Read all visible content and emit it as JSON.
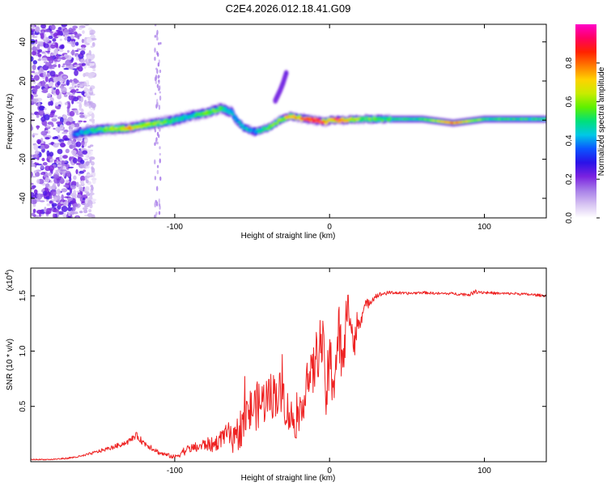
{
  "page_title": "C2E4.2026.012.18.41.G09",
  "chart_data": [
    {
      "type": "heatmap",
      "title": "C2E4.2026.012.18.41.G09",
      "xlabel": "Height of straight line (km)",
      "ylabel": "Frequency (Hz)",
      "xlim": [
        -193,
        140
      ],
      "ylim": [
        -50,
        49
      ],
      "xticks": [
        -100,
        0,
        100
      ],
      "yticks": [
        -40,
        -20,
        0,
        20,
        40
      ],
      "colorbar": {
        "label": "Normalized spectral amplitude",
        "range": [
          0.0,
          1.0
        ],
        "ticks": [
          0.0,
          0.2,
          0.4,
          0.6,
          0.8
        ],
        "colors": [
          "#ffffff",
          "#d6c2f2",
          "#a77de8",
          "#7a22e0",
          "#2a12e8",
          "#0a55ff",
          "#00c8e6",
          "#00e07a",
          "#5ef000",
          "#c8ec00",
          "#ffd200",
          "#ff7a00",
          "#ff2200",
          "#ff0060",
          "#ff00c8"
        ]
      },
      "ridge": {
        "x": [
          -165,
          -150,
          -130,
          -115,
          -100,
          -90,
          -78,
          -70,
          -63,
          -60,
          -55,
          -48,
          -40,
          -32,
          -25,
          -18,
          -10,
          -3,
          0,
          5,
          10,
          20,
          40,
          60,
          80,
          100,
          120,
          140
        ],
        "freq": [
          -7,
          -5,
          -4,
          -2,
          0,
          2,
          4,
          6,
          4,
          0,
          -4,
          -6,
          -4,
          0,
          2,
          1,
          0,
          -1,
          0,
          0,
          0,
          0.5,
          0.5,
          0.5,
          -1.5,
          0.5,
          0.5,
          0.5
        ],
        "amplitude": [
          0.35,
          0.5,
          0.7,
          0.6,
          0.5,
          0.45,
          0.55,
          0.5,
          0.45,
          0.4,
          0.45,
          0.4,
          0.5,
          0.6,
          0.7,
          0.8,
          0.9,
          0.85,
          0.6,
          0.9,
          0.7,
          0.55,
          0.5,
          0.5,
          0.8,
          0.5,
          0.5,
          0.5
        ]
      },
      "branch": {
        "x": [
          -35,
          -32,
          -30,
          -28
        ],
        "freq": [
          10,
          15,
          19,
          24
        ],
        "amplitude": 0.25
      },
      "noise_region": [
        -193,
        -158
      ]
    },
    {
      "type": "line",
      "title": "",
      "xlabel": "Height of straight line (km)",
      "ylabel": "SNR (10 * v/v)",
      "scale_label": "(x10",
      "scale_exponent": "4",
      "xlim": [
        -193,
        140
      ],
      "ylim": [
        0,
        1.75
      ],
      "xticks": [
        -100,
        0,
        100
      ],
      "yticks": [
        0.5,
        1.0,
        1.5
      ],
      "color": "#ee2222",
      "series": [
        {
          "name": "SNR",
          "x": [
            -193,
            -180,
            -170,
            -160,
            -150,
            -140,
            -130,
            -125,
            -120,
            -115,
            -110,
            -100,
            -95,
            -90,
            -85,
            -80,
            -75,
            -70,
            -65,
            -62,
            -58,
            -55,
            -50,
            -45,
            -40,
            -35,
            -30,
            -27,
            -22,
            -18,
            -15,
            -12,
            -8,
            -5,
            -2,
            0,
            3,
            6,
            9,
            12,
            14,
            16,
            18,
            20,
            23,
            26,
            30,
            35,
            40,
            50,
            60,
            70,
            80,
            90,
            95,
            100,
            110,
            120,
            130,
            140
          ],
          "y": [
            0.02,
            0.02,
            0.03,
            0.05,
            0.09,
            0.13,
            0.18,
            0.24,
            0.17,
            0.13,
            0.08,
            0.04,
            0.09,
            0.12,
            0.13,
            0.16,
            0.15,
            0.21,
            0.26,
            0.15,
            0.3,
            0.38,
            0.48,
            0.52,
            0.58,
            0.62,
            0.6,
            0.45,
            0.35,
            0.4,
            0.8,
            0.72,
            0.98,
            1.1,
            0.6,
            0.88,
            0.75,
            1.18,
            0.78,
            1.62,
            1.2,
            1.05,
            1.22,
            1.3,
            1.4,
            1.45,
            1.5,
            1.52,
            1.53,
            1.52,
            1.53,
            1.52,
            1.52,
            1.51,
            1.54,
            1.53,
            1.52,
            1.52,
            1.51,
            1.5
          ],
          "noise": [
            0.005,
            0.005,
            0.008,
            0.01,
            0.015,
            0.02,
            0.025,
            0.03,
            0.03,
            0.03,
            0.02,
            0.02,
            0.04,
            0.04,
            0.05,
            0.06,
            0.07,
            0.08,
            0.1,
            0.15,
            0.18,
            0.2,
            0.22,
            0.22,
            0.22,
            0.22,
            0.22,
            0.2,
            0.15,
            0.15,
            0.25,
            0.25,
            0.25,
            0.28,
            0.3,
            0.3,
            0.3,
            0.28,
            0.3,
            0.25,
            0.2,
            0.15,
            0.1,
            0.08,
            0.06,
            0.04,
            0.025,
            0.02,
            0.015,
            0.012,
            0.012,
            0.012,
            0.012,
            0.015,
            0.02,
            0.015,
            0.012,
            0.012,
            0.012,
            0.012
          ]
        }
      ]
    }
  ]
}
